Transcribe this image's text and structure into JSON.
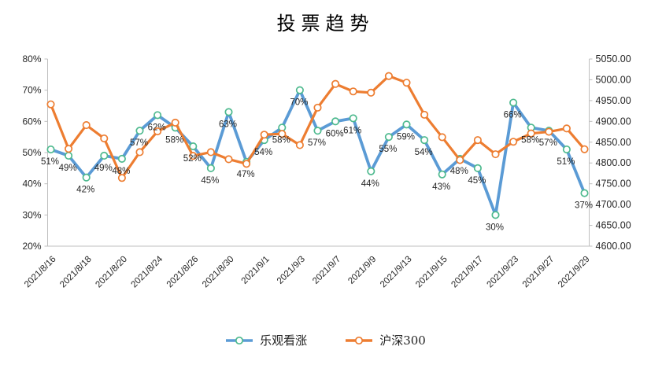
{
  "title": "投票趋势",
  "chart_data": {
    "type": "line",
    "x": [
      "2021/8/16",
      "2021/8/17",
      "2021/8/18",
      "2021/8/19",
      "2021/8/20",
      "2021/8/23",
      "2021/8/24",
      "2021/8/25",
      "2021/8/26",
      "2021/8/27",
      "2021/8/30",
      "2021/8/31",
      "2021/9/1",
      "2021/9/2",
      "2021/9/3",
      "2021/9/6",
      "2021/9/7",
      "2021/9/8",
      "2021/9/9",
      "2021/9/10",
      "2021/9/13",
      "2021/9/14",
      "2021/9/15",
      "2021/9/16",
      "2021/9/17",
      "2021/9/22",
      "2021/9/23",
      "2021/9/24",
      "2021/9/27",
      "2021/9/28",
      "2021/9/29"
    ],
    "x_tick_labels_shown": [
      "2021/8/16",
      "2021/8/18",
      "2021/8/20",
      "2021/8/24",
      "2021/8/26",
      "2021/8/30",
      "2021/9/1",
      "2021/9/3",
      "2021/9/7",
      "2021/9/9",
      "2021/9/13",
      "2021/9/15",
      "2021/9/17",
      "2021/9/23",
      "2021/9/27",
      "2021/9/29"
    ],
    "series": [
      {
        "name": "乐观看涨",
        "axis": "left",
        "color": "#5B9BD5",
        "marker_ring": "#4FBA8F",
        "values": [
          51,
          49,
          42,
          49,
          48,
          57,
          62,
          58,
          52,
          45,
          63,
          47,
          54,
          58,
          70,
          57,
          60,
          61,
          44,
          55,
          59,
          54,
          43,
          48,
          45,
          30,
          66,
          58,
          57,
          51,
          37
        ],
        "data_labels": [
          "51%",
          "49%",
          "42%",
          "49%",
          "48%",
          "57%",
          "62%",
          "58%",
          "52%",
          "45%",
          "63%",
          "47%",
          "54%",
          "58%",
          "70%",
          "57%",
          "60%",
          "61%",
          "44%",
          "55%",
          "59%",
          "54%",
          "43%",
          "48%",
          "45%",
          "30%",
          "66%",
          "58%",
          "57%",
          "51%",
          "37%"
        ]
      },
      {
        "name": "沪深300",
        "axis": "right",
        "color": "#ED7D31",
        "marker_ring": "#ED7D31",
        "values": [
          4941,
          4834,
          4891,
          4859,
          4764,
          4826,
          4876,
          4897,
          4817,
          4826,
          4809,
          4798,
          4868,
          4870,
          4843,
          4933,
          4990,
          4972,
          4969,
          5009,
          4993,
          4916,
          4862,
          4807,
          4855,
          4821,
          4851,
          4871,
          4875,
          4883,
          4833
        ]
      }
    ],
    "left_axis": {
      "min": 20,
      "max": 80,
      "step": 10,
      "tick_labels": [
        "20%",
        "30%",
        "40%",
        "50%",
        "60%",
        "70%",
        "80%"
      ]
    },
    "right_axis": {
      "min": 4600,
      "max": 5050,
      "step": 50,
      "tick_labels": [
        "4600.00",
        "4650.00",
        "4700.00",
        "4750.00",
        "4800.00",
        "4850.00",
        "4900.00",
        "4950.00",
        "5000.00",
        "5050.00"
      ]
    },
    "legend_position": "bottom",
    "grid": false,
    "axis_line_color": "#BFBFBF",
    "label_color": "#262626"
  }
}
